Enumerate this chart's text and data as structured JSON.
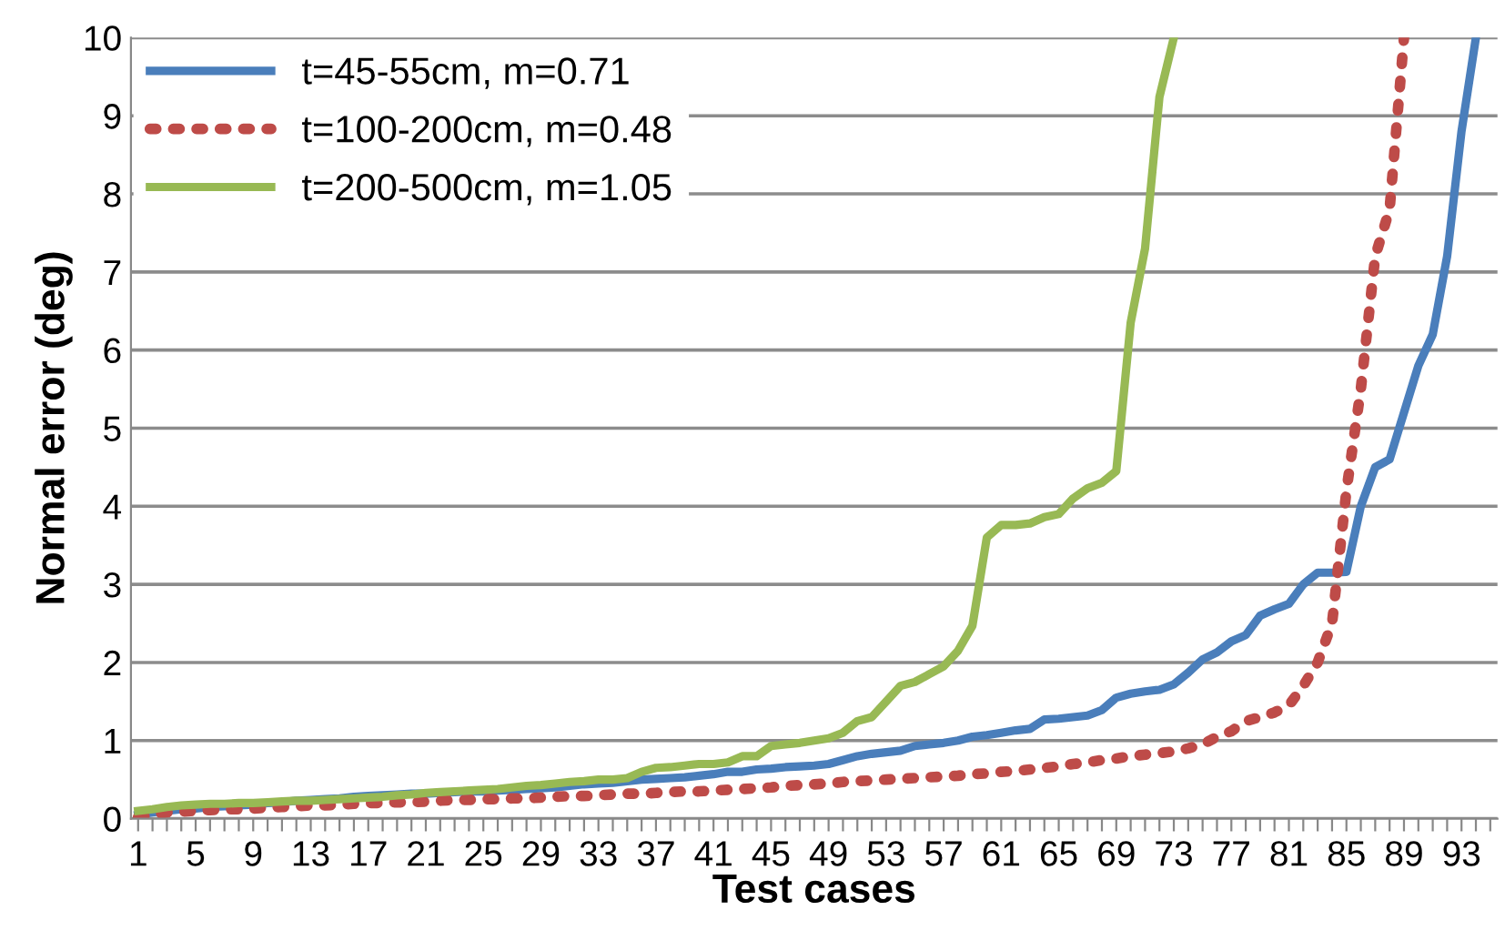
{
  "chart_data": {
    "type": "line",
    "xlabel": "Test cases",
    "ylabel": "Normal error (deg)",
    "categories": [
      "1",
      null,
      null,
      null,
      "5",
      null,
      null,
      null,
      "9",
      null,
      null,
      null,
      "13",
      null,
      null,
      null,
      "17",
      null,
      null,
      null,
      "21",
      null,
      null,
      null,
      "25",
      null,
      null,
      null,
      "29",
      null,
      null,
      null,
      "33",
      null,
      null,
      null,
      "37",
      null,
      null,
      null,
      "41",
      null,
      null,
      null,
      "45",
      null,
      null,
      null,
      "49",
      null,
      null,
      null,
      "53",
      null,
      null,
      null,
      "57",
      null,
      null,
      null,
      "61",
      null,
      null,
      null,
      "65",
      null,
      null,
      null,
      "69",
      null,
      null,
      null,
      "73",
      null,
      null,
      null,
      "77",
      null,
      null,
      null,
      "81",
      null,
      null,
      null,
      "85",
      null,
      null,
      null,
      "89",
      null,
      null,
      null,
      "93",
      null,
      null
    ],
    "ylim": [
      0,
      10
    ],
    "yticks": [
      0,
      1,
      2,
      3,
      4,
      5,
      6,
      7,
      8,
      9,
      10
    ],
    "grid": "y",
    "legend": "top left",
    "marker": "none",
    "series": [
      {
        "name": "t=45-55cm, m=0.71",
        "color": "#4a7ebb",
        "line_style": "solid",
        "values": [
          0.05,
          0.08,
          0.1,
          0.12,
          0.13,
          0.15,
          0.16,
          0.17,
          0.18,
          0.2,
          0.21,
          0.23,
          0.24,
          0.25,
          0.26,
          0.28,
          0.29,
          0.3,
          0.31,
          0.32,
          0.32,
          0.33,
          0.34,
          0.35,
          0.35,
          0.36,
          0.37,
          0.38,
          0.39,
          0.4,
          0.42,
          0.44,
          0.45,
          0.46,
          0.48,
          0.5,
          0.51,
          0.52,
          0.53,
          0.55,
          0.57,
          0.6,
          0.6,
          0.63,
          0.64,
          0.66,
          0.67,
          0.68,
          0.7,
          0.75,
          0.8,
          0.83,
          0.85,
          0.87,
          0.93,
          0.95,
          0.97,
          1.0,
          1.05,
          1.07,
          1.1,
          1.13,
          1.15,
          1.27,
          1.28,
          1.3,
          1.32,
          1.39,
          1.55,
          1.6,
          1.63,
          1.65,
          1.72,
          1.87,
          2.04,
          2.13,
          2.27,
          2.35,
          2.6,
          2.68,
          2.75,
          3.0,
          3.15,
          3.15,
          3.16,
          4.0,
          4.5,
          4.6,
          5.2,
          5.8,
          6.2,
          7.2,
          8.8,
          10,
          null
        ]
      },
      {
        "name": "t=100-200cm, m=0.48",
        "color": "#be4b48",
        "line_style": "dotted",
        "values": [
          0.02,
          0.05,
          0.08,
          0.09,
          0.1,
          0.11,
          0.12,
          0.12,
          0.13,
          0.14,
          0.15,
          0.16,
          0.17,
          0.17,
          0.18,
          0.19,
          0.2,
          0.2,
          0.21,
          0.21,
          0.22,
          0.23,
          0.24,
          0.24,
          0.25,
          0.25,
          0.26,
          0.26,
          0.27,
          0.28,
          0.29,
          0.29,
          0.3,
          0.31,
          0.32,
          0.32,
          0.33,
          0.34,
          0.35,
          0.35,
          0.36,
          0.37,
          0.38,
          0.39,
          0.4,
          0.42,
          0.43,
          0.44,
          0.45,
          0.47,
          0.48,
          0.49,
          0.5,
          0.51,
          0.52,
          0.53,
          0.54,
          0.55,
          0.57,
          0.58,
          0.6,
          0.61,
          0.63,
          0.65,
          0.67,
          0.7,
          0.72,
          0.75,
          0.77,
          0.8,
          0.82,
          0.84,
          0.86,
          0.9,
          0.95,
          1.05,
          1.12,
          1.25,
          1.3,
          1.36,
          1.45,
          1.7,
          2.0,
          2.5,
          4.2,
          5.5,
          7.2,
          7.8,
          10,
          null,
          null,
          null,
          null,
          null,
          null
        ]
      },
      {
        "name": "t=200-500cm, m=1.05",
        "color": "#98b954",
        "line_style": "solid",
        "values": [
          0.1,
          0.12,
          0.15,
          0.17,
          0.18,
          0.19,
          0.19,
          0.2,
          0.2,
          0.21,
          0.22,
          0.23,
          0.23,
          0.24,
          0.25,
          0.26,
          0.27,
          0.28,
          0.3,
          0.31,
          0.33,
          0.34,
          0.35,
          0.36,
          0.37,
          0.38,
          0.4,
          0.42,
          0.43,
          0.45,
          0.47,
          0.48,
          0.5,
          0.5,
          0.52,
          0.6,
          0.65,
          0.66,
          0.68,
          0.7,
          0.7,
          0.72,
          0.8,
          0.8,
          0.93,
          0.95,
          0.97,
          1.0,
          1.03,
          1.1,
          1.25,
          1.3,
          1.5,
          1.7,
          1.75,
          1.85,
          1.95,
          2.15,
          2.47,
          3.6,
          3.76,
          3.76,
          3.78,
          3.86,
          3.9,
          4.1,
          4.23,
          4.3,
          4.45,
          6.35,
          7.3,
          9.24,
          10,
          null,
          null,
          null,
          null,
          null,
          null,
          null,
          null,
          null,
          null,
          null,
          null,
          null,
          null,
          null,
          null,
          null,
          null,
          null,
          null,
          null,
          null
        ]
      }
    ]
  }
}
